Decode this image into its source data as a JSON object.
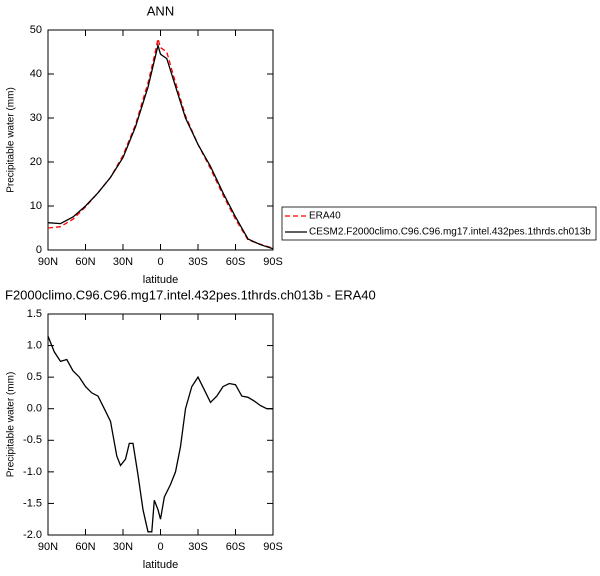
{
  "chart_data": [
    {
      "type": "line",
      "title": "ANN",
      "xlabel": "latitude",
      "ylabel": "Precipitable water (mm)",
      "x": [
        90,
        80,
        70,
        60,
        50,
        40,
        30,
        20,
        10,
        5,
        2,
        0,
        -5,
        -10,
        -20,
        -30,
        -40,
        -50,
        -60,
        -70,
        -80,
        -90
      ],
      "series": [
        {
          "name": "ERA40",
          "color": "#ff0000",
          "dash": true,
          "values": [
            5,
            5.3,
            7,
            9.8,
            13,
            16.5,
            21.5,
            28.5,
            38,
            44,
            48,
            46,
            45,
            40,
            30.5,
            24,
            18.5,
            12.5,
            7,
            2.3,
            1.3,
            0.4
          ]
        },
        {
          "name": "CESM2.F2000climo.C96.C96.mg17.intel.432pes.1thrds.ch013b",
          "color": "#000000",
          "dash": false,
          "values": [
            6.2,
            6,
            7.5,
            10,
            13,
            16.5,
            21,
            28,
            37,
            43,
            46.5,
            44.5,
            43.5,
            39,
            30,
            24,
            19,
            13,
            7.5,
            2.5,
            1.2,
            0.3
          ]
        }
      ],
      "xlim": [
        90,
        -90
      ],
      "xticks": [
        {
          "value": 90,
          "label": "90N"
        },
        {
          "value": 60,
          "label": "60N"
        },
        {
          "value": 30,
          "label": "30N"
        },
        0,
        {
          "value": -30,
          "label": "30S"
        },
        {
          "value": -60,
          "label": "60S"
        },
        {
          "value": -90,
          "label": "90S"
        }
      ],
      "ylim": [
        0,
        50
      ],
      "yticks": [
        0,
        10,
        20,
        30,
        40,
        50
      ]
    },
    {
      "type": "line",
      "title": "F2000climo.C96.C96.mg17.intel.432pes.1thrds.ch013b - ERA40",
      "xlabel": "latitude",
      "ylabel": "Precipitable water (mm)",
      "x": [
        90,
        85,
        80,
        75,
        70,
        65,
        60,
        55,
        50,
        45,
        40,
        35,
        32,
        28,
        25,
        22,
        18,
        14,
        10,
        7,
        5,
        2,
        0,
        -3,
        -8,
        -12,
        -16,
        -20,
        -25,
        -30,
        -35,
        -40,
        -45,
        -50,
        -55,
        -60,
        -65,
        -70,
        -75,
        -80,
        -85,
        -90
      ],
      "series": [
        {
          "color": "#000000",
          "dash": false,
          "values": [
            1.15,
            0.9,
            0.75,
            0.78,
            0.6,
            0.5,
            0.35,
            0.25,
            0.2,
            0,
            -0.2,
            -0.75,
            -0.9,
            -0.8,
            -0.55,
            -0.55,
            -1.05,
            -1.6,
            -1.95,
            -1.95,
            -1.45,
            -1.6,
            -1.75,
            -1.4,
            -1.2,
            -1,
            -0.6,
            0,
            0.35,
            0.5,
            0.3,
            0.1,
            0.2,
            0.35,
            0.4,
            0.38,
            0.2,
            0.18,
            0.12,
            0.05,
            0,
            0
          ]
        }
      ],
      "xlim": [
        90,
        -90
      ],
      "xticks": [
        {
          "value": 90,
          "label": "90N"
        },
        {
          "value": 60,
          "label": "60N"
        },
        {
          "value": 30,
          "label": "30N"
        },
        0,
        {
          "value": -30,
          "label": "30S"
        },
        {
          "value": -60,
          "label": "60S"
        },
        {
          "value": -90,
          "label": "90S"
        }
      ],
      "ylim": [
        -2,
        1.5
      ],
      "yticks": [
        {
          "value": -2,
          "label": "-2.0"
        },
        {
          "value": -1.5,
          "label": "-1.5"
        },
        {
          "value": -1,
          "label": "-1.0"
        },
        {
          "value": -0.5,
          "label": "-0.5"
        },
        {
          "value": 0,
          "label": "0.0"
        },
        0.5,
        {
          "value": 1,
          "label": "1.0"
        },
        1.5
      ]
    }
  ]
}
